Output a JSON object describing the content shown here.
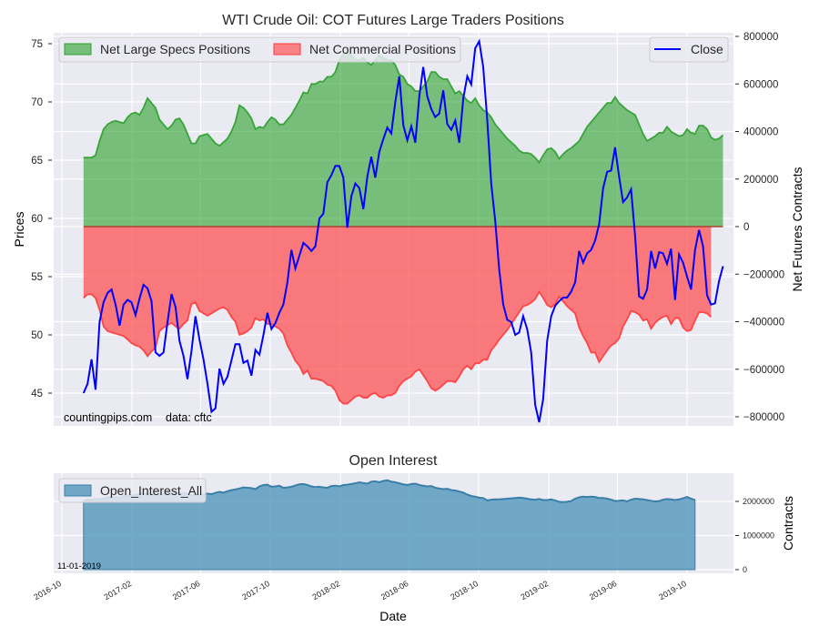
{
  "chart_data": [
    {
      "type": "area",
      "title": "WTI Crude Oil: COT Futures Large Traders Positions",
      "xlabel": "",
      "ylabel_left": "Prices",
      "ylabel_right": "Net Futures Contracts",
      "ylim_left": [
        42.5,
        76
      ],
      "ylim_right": [
        -830000,
        820000
      ],
      "yticks_left": [
        45,
        50,
        55,
        60,
        65,
        70,
        75
      ],
      "yticks_right": [
        -800000,
        -600000,
        -400000,
        -200000,
        0,
        200000,
        400000,
        600000,
        800000
      ],
      "ytick_labels_right": [
        "−800000",
        "−600000",
        "−400000",
        "−200000",
        "0",
        "200000",
        "400000",
        "600000",
        "800000"
      ],
      "legend_left": [
        "Net Large Specs Positions",
        "Net Commercial Positions"
      ],
      "legend_right": [
        "Close"
      ],
      "legend_placement_left": "top-left",
      "legend_placement_right": "top-right",
      "annotation_site": "countingpips.com",
      "annotation_source": "data: cftc",
      "grid": true,
      "x_start": "2016-11-08",
      "x_step_days": 7,
      "series": [
        {
          "name": "Net Large Specs Positions",
          "color": "#2ca02c",
          "values": [
            290000,
            290000,
            290000,
            300000,
            360000,
            410000,
            430000,
            440000,
            445000,
            440000,
            435000,
            460000,
            475000,
            480000,
            470000,
            500000,
            540000,
            520000,
            500000,
            450000,
            430000,
            410000,
            425000,
            450000,
            455000,
            430000,
            390000,
            350000,
            350000,
            380000,
            385000,
            390000,
            370000,
            350000,
            340000,
            355000,
            370000,
            400000,
            440000,
            510000,
            500000,
            480000,
            455000,
            410000,
            420000,
            415000,
            440000,
            460000,
            450000,
            430000,
            430000,
            450000,
            470000,
            500000,
            530000,
            565000,
            560000,
            600000,
            600000,
            610000,
            610000,
            630000,
            630000,
            650000,
            700000,
            725000,
            730000,
            720000,
            700000,
            700000,
            710000,
            690000,
            680000,
            700000,
            720000,
            710000,
            700000,
            700000,
            680000,
            640000,
            630000,
            600000,
            590000,
            570000,
            570000,
            590000,
            610000,
            650000,
            650000,
            630000,
            620000,
            620000,
            590000,
            560000,
            570000,
            550000,
            530000,
            520000,
            540000,
            510000,
            490000,
            480000,
            460000,
            430000,
            410000,
            390000,
            370000,
            355000,
            340000,
            320000,
            310000,
            310000,
            305000,
            290000,
            270000,
            300000,
            325000,
            330000,
            315000,
            285000,
            305000,
            320000,
            330000,
            345000,
            360000,
            390000,
            420000,
            440000,
            460000,
            480000,
            500000,
            520000,
            520000,
            545000,
            520000,
            505000,
            490000,
            480000,
            470000,
            430000,
            390000,
            360000,
            370000,
            380000,
            395000,
            395000,
            420000,
            400000,
            390000,
            380000,
            385000,
            410000,
            395000,
            390000,
            425000,
            425000,
            410000,
            375000,
            365000,
            370000,
            385000
          ]
        },
        {
          "name": "Net Commercial Positions",
          "color": "#ff3b3b",
          "values": [
            -300000,
            -285000,
            -285000,
            -300000,
            -350000,
            -420000,
            -440000,
            -445000,
            -450000,
            -455000,
            -460000,
            -475000,
            -490000,
            -500000,
            -505000,
            -520000,
            -545000,
            -525000,
            -510000,
            -440000,
            -425000,
            -415000,
            -405000,
            -420000,
            -430000,
            -410000,
            -395000,
            -325000,
            -320000,
            -355000,
            -365000,
            -375000,
            -365000,
            -355000,
            -345000,
            -340000,
            -350000,
            -380000,
            -400000,
            -455000,
            -450000,
            -440000,
            -425000,
            -385000,
            -395000,
            -390000,
            -410000,
            -410000,
            -420000,
            -430000,
            -450000,
            -500000,
            -530000,
            -565000,
            -585000,
            -620000,
            -605000,
            -640000,
            -640000,
            -645000,
            -650000,
            -665000,
            -670000,
            -690000,
            -730000,
            -745000,
            -745000,
            -730000,
            -715000,
            -710000,
            -720000,
            -720000,
            -705000,
            -700000,
            -715000,
            -720000,
            -710000,
            -710000,
            -700000,
            -670000,
            -650000,
            -640000,
            -630000,
            -610000,
            -600000,
            -625000,
            -650000,
            -680000,
            -690000,
            -680000,
            -665000,
            -650000,
            -650000,
            -655000,
            -630000,
            -600000,
            -585000,
            -600000,
            -575000,
            -575000,
            -560000,
            -560000,
            -520000,
            -500000,
            -475000,
            -455000,
            -435000,
            -410000,
            -385000,
            -360000,
            -335000,
            -330000,
            -320000,
            -305000,
            -275000,
            -300000,
            -330000,
            -340000,
            -325000,
            -295000,
            -315000,
            -335000,
            -350000,
            -365000,
            -425000,
            -460000,
            -490000,
            -530000,
            -530000,
            -570000,
            -545000,
            -520000,
            -500000,
            -490000,
            -470000,
            -420000,
            -390000,
            -355000,
            -360000,
            -370000,
            -395000,
            -390000,
            -430000,
            -405000,
            -390000,
            -380000,
            -375000,
            -410000,
            -385000,
            -385000,
            -425000,
            -440000,
            -435000,
            -395000,
            -360000,
            -360000,
            -365000,
            -380000
          ]
        },
        {
          "name": "Close",
          "axis": "left",
          "color": "#0000ff",
          "values": [
            45.0,
            45.8,
            47.9,
            45.3,
            51.1,
            52.8,
            53.6,
            53.9,
            52.6,
            50.8,
            52.6,
            53.0,
            52.8,
            51.7,
            53.1,
            54.3,
            54.0,
            52.9,
            48.5,
            48.2,
            48.5,
            51.1,
            53.5,
            52.4,
            49.5,
            48.2,
            46.2,
            48.6,
            51.6,
            49.6,
            47.9,
            45.8,
            43.4,
            43.7,
            47.1,
            45.8,
            46.4,
            47.8,
            49.2,
            49.2,
            47.6,
            47.8,
            46.5,
            48.7,
            48.3,
            50.0,
            51.9,
            50.5,
            51.0,
            51.9,
            52.6,
            54.5,
            57.3,
            55.7,
            56.8,
            57.9,
            57.6,
            57.2,
            57.6,
            60.0,
            60.4,
            63.1,
            63.7,
            64.5,
            64.5,
            63.5,
            59.2,
            61.9,
            63.0,
            62.6,
            60.8,
            63.6,
            65.3,
            63.5,
            65.7,
            66.8,
            67.8,
            67.3,
            70.0,
            72.2,
            68.0,
            66.7,
            67.9,
            66.5,
            70.5,
            73.0,
            70.5,
            69.4,
            68.7,
            69.0,
            71.0,
            68.1,
            67.6,
            68.4,
            66.5,
            70.3,
            72.2,
            71.5,
            74.6,
            75.2,
            73.0,
            68.5,
            63.0,
            59.8,
            55.6,
            52.6,
            51.3,
            51.1,
            50.0,
            50.2,
            51.6,
            50.5,
            48.5,
            44.0,
            42.5,
            44.5,
            49.5,
            51.6,
            52.5,
            52.9,
            53.2,
            53.2,
            53.7,
            54.5,
            57.2,
            56.2,
            57.0,
            57.3,
            58.1,
            59.5,
            62.6,
            64.0,
            64.1,
            66.1,
            63.6,
            61.4,
            61.8,
            62.5,
            58.5,
            53.3,
            53.1,
            53.9,
            57.2,
            55.7,
            57.1,
            57.0,
            56.1,
            57.4,
            53.0,
            56.9,
            56.2,
            55.0,
            53.9,
            57.3,
            59.0,
            57.6,
            53.4,
            52.6,
            52.7,
            54.6,
            55.9
          ]
        }
      ]
    },
    {
      "type": "area",
      "title": "Open Interest",
      "xlabel": "Date",
      "ylabel_right": "Contracts",
      "ylim": [
        -100000,
        2800000
      ],
      "yticks": [
        0,
        1000000,
        2000000
      ],
      "ytick_labels": [
        "0",
        "1000000",
        "2000000"
      ],
      "xtick_labels": [
        "2016-10",
        "2017-02",
        "2017-06",
        "2017-10",
        "2018-02",
        "2018-06",
        "2018-10",
        "2019-02",
        "2019-06",
        "2019-10"
      ],
      "legend": [
        "Open_Interest_All"
      ],
      "legend_placement": "top-left",
      "annotation_date": "11-01-2019",
      "grid": true,
      "series": [
        {
          "name": "Open_Interest_All",
          "color": "#5b9bbf",
          "values": [
            2010000,
            2050000,
            2040000,
            2080000,
            2060000,
            2090000,
            2110000,
            2130000,
            2120000,
            2100000,
            2150000,
            2180000,
            2160000,
            2190000,
            2220000,
            2240000,
            2210000,
            2200000,
            2180000,
            2210000,
            2230000,
            2250000,
            2260000,
            2240000,
            2230000,
            2250000,
            2210000,
            2180000,
            2200000,
            2190000,
            2200000,
            2230000,
            2210000,
            2250000,
            2280000,
            2260000,
            2300000,
            2330000,
            2350000,
            2380000,
            2410000,
            2400000,
            2390000,
            2360000,
            2440000,
            2480000,
            2490000,
            2430000,
            2440000,
            2460000,
            2400000,
            2410000,
            2430000,
            2470000,
            2500000,
            2510000,
            2480000,
            2440000,
            2420000,
            2430000,
            2410000,
            2400000,
            2450000,
            2460000,
            2440000,
            2480000,
            2490000,
            2510000,
            2530000,
            2560000,
            2540000,
            2520000,
            2580000,
            2590000,
            2560000,
            2600000,
            2620000,
            2580000,
            2560000,
            2530000,
            2500000,
            2480000,
            2510000,
            2520000,
            2480000,
            2460000,
            2440000,
            2450000,
            2400000,
            2380000,
            2360000,
            2370000,
            2330000,
            2320000,
            2290000,
            2260000,
            2200000,
            2160000,
            2140000,
            2110000,
            2100000,
            2030000,
            2050000,
            2060000,
            2060000,
            2070000,
            2080000,
            2090000,
            2100000,
            2110000,
            2100000,
            2080000,
            2060000,
            2050000,
            2070000,
            2040000,
            2040000,
            2060000,
            2030000,
            1990000,
            1980000,
            1990000,
            2010000,
            2080000,
            2120000,
            2140000,
            2130000,
            2140000,
            2130000,
            2100000,
            2100000,
            2080000,
            2050000,
            2010000,
            2020000,
            2030000,
            2000000,
            2050000,
            2080000,
            2070000,
            2060000,
            2040000,
            2020000,
            2000000,
            2010000,
            2050000,
            2070000,
            2060000,
            2040000,
            2060000,
            2090000,
            2130000,
            2080000,
            2040000
          ]
        }
      ]
    }
  ]
}
